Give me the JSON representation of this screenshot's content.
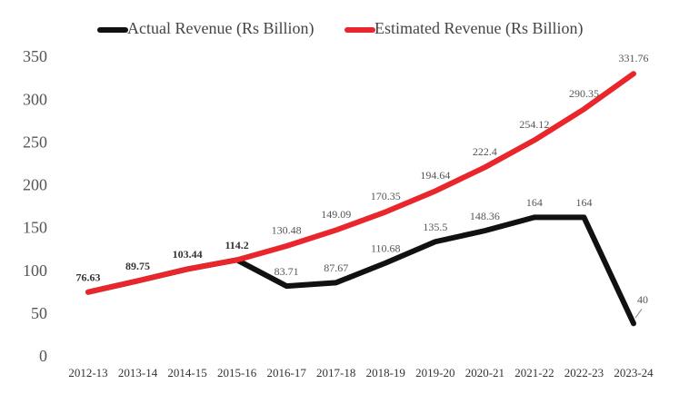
{
  "chart_data": {
    "type": "line",
    "categories": [
      "2012-13",
      "2013-14",
      "2014-15",
      "2015-16",
      "2016-17",
      "2017-18",
      "2018-19",
      "2019-20",
      "2020-21",
      "2021-22",
      "2022-23",
      "2023-24"
    ],
    "series": [
      {
        "name": "Actual Revenue (Rs Billion)",
        "color": "#111111",
        "values": [
          76.63,
          89.75,
          103.44,
          114.2,
          83.71,
          87.67,
          110.68,
          135.5,
          148.36,
          164,
          164,
          40
        ]
      },
      {
        "name": "Estimated Revenue (Rs Billion)",
        "color": "#e8262c",
        "values": [
          76.63,
          89.75,
          103.44,
          114.2,
          130.48,
          149.09,
          170.35,
          194.64,
          222.4,
          254.12,
          290.35,
          331.76
        ]
      }
    ],
    "ylim": [
      0,
      350
    ],
    "yticks": [
      0,
      50,
      100,
      150,
      200,
      250,
      300,
      350
    ],
    "grid": false,
    "legend": "top"
  }
}
